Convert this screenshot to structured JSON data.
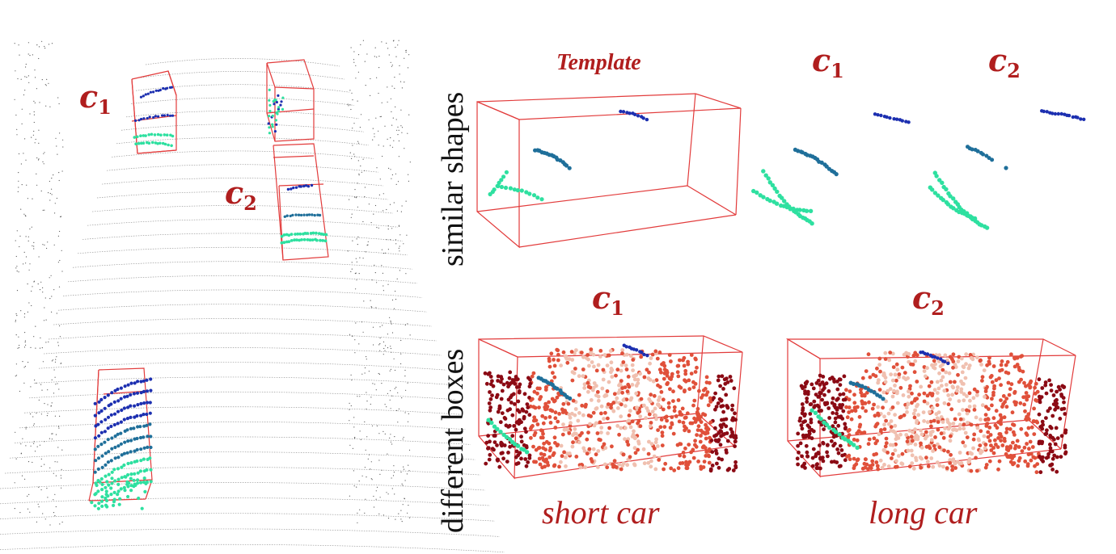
{
  "scene_labels": {
    "c1": {
      "letter": "c",
      "sub": "1"
    },
    "c2": {
      "letter": "c",
      "sub": "2"
    }
  },
  "top_row": {
    "row_label": "similar shapes",
    "template_label": "Template",
    "c1": {
      "letter": "c",
      "sub": "1"
    },
    "c2": {
      "letter": "c",
      "sub": "2"
    }
  },
  "bottom_row": {
    "row_label": "different boxes",
    "c1": {
      "letter": "c",
      "sub": "1"
    },
    "c2": {
      "letter": "c",
      "sub": "2"
    },
    "caption_short": "short car",
    "caption_long": "long car"
  },
  "colors": {
    "box": "#e23b3b",
    "label": "#b01e1e",
    "scan_line": "#9a9a9a",
    "point_blue": "#1c2fb0",
    "point_teal": "#1f6f9a",
    "point_green": "#2ee0a0",
    "car_dark": "#8b0a14",
    "car_mid": "#e0503a",
    "car_light": "#f0c0b0"
  }
}
